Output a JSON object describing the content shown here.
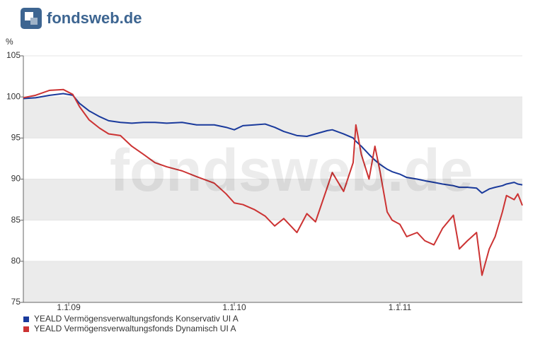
{
  "logo": "fondsweb.de",
  "chart_data": {
    "type": "line",
    "y_label": "%",
    "x": [
      "2008-09-23",
      "2008-10-20",
      "2008-11-20",
      "2008-12-20",
      "2009-01-10",
      "2009-01-25",
      "2009-02-15",
      "2009-03-10",
      "2009-03-30",
      "2009-04-25",
      "2009-05-20",
      "2009-06-15",
      "2009-07-10",
      "2009-08-05",
      "2009-09-08",
      "2009-10-10",
      "2009-11-18",
      "2009-12-14",
      "2010-01-01",
      "2010-01-20",
      "2010-02-14",
      "2010-03-10",
      "2010-03-31",
      "2010-04-20",
      "2010-05-19",
      "2010-06-10",
      "2010-06-29",
      "2010-07-25",
      "2010-08-05",
      "2010-08-30",
      "2010-09-20",
      "2010-09-26",
      "2010-10-08",
      "2010-10-25",
      "2010-11-07",
      "2010-11-18",
      "2010-12-04",
      "2010-12-15",
      "2011-01-01",
      "2011-01-16",
      "2011-02-08",
      "2011-02-25",
      "2011-03-17",
      "2011-04-05",
      "2011-04-29",
      "2011-05-12",
      "2011-05-30",
      "2011-06-19",
      "2011-07-01",
      "2011-07-17",
      "2011-07-30",
      "2011-08-15",
      "2011-08-24",
      "2011-09-10",
      "2011-09-18",
      "2011-09-28"
    ],
    "series": [
      {
        "name": "YEALD Vermögensverwaltungsfonds Konservativ UI A",
        "color": "#1a3a9c",
        "values": [
          99.8,
          99.9,
          100.2,
          100.4,
          100.2,
          99.2,
          98.3,
          97.6,
          97.1,
          96.9,
          96.8,
          96.9,
          96.9,
          96.8,
          96.9,
          96.6,
          96.6,
          96.3,
          96.0,
          96.5,
          96.6,
          96.7,
          96.3,
          95.8,
          95.3,
          95.2,
          95.5,
          95.9,
          96.0,
          95.5,
          95.0,
          94.6,
          94.0,
          93.0,
          92.3,
          91.8,
          91.2,
          90.9,
          90.6,
          90.2,
          90.0,
          89.8,
          89.6,
          89.4,
          89.2,
          89.0,
          89.0,
          88.9,
          88.3,
          88.8,
          89.0,
          89.2,
          89.4,
          89.6,
          89.4,
          89.3
        ]
      },
      {
        "name": "YEALD Vermögensverwaltungsfonds Dynamisch UI A",
        "color": "#cc3333",
        "values": [
          99.9,
          100.2,
          100.8,
          100.9,
          100.3,
          98.8,
          97.2,
          96.2,
          95.5,
          95.3,
          94.0,
          93.0,
          92.0,
          91.5,
          91.0,
          90.3,
          89.5,
          88.2,
          87.1,
          86.9,
          86.3,
          85.5,
          84.3,
          85.2,
          83.5,
          85.8,
          84.8,
          89.0,
          90.8,
          88.5,
          92.0,
          96.6,
          93.0,
          90.0,
          94.0,
          91.0,
          86.0,
          85.0,
          84.5,
          83.0,
          83.5,
          82.5,
          82.0,
          84.0,
          85.6,
          81.5,
          82.5,
          83.5,
          78.3,
          81.5,
          83.0,
          86.0,
          88.0,
          87.5,
          88.2,
          86.8
        ]
      }
    ],
    "xlim": [
      "2008-09-23",
      "2011-09-28"
    ],
    "xticks": [
      {
        "value": "2009-01-01",
        "label": "1.1.09"
      },
      {
        "value": "2010-01-01",
        "label": "1.1.10"
      },
      {
        "value": "2011-01-01",
        "label": "1.1.11"
      }
    ],
    "ylim": [
      75,
      105
    ],
    "yticks": [
      75,
      80,
      85,
      90,
      95,
      100,
      105
    ],
    "bands": true
  }
}
